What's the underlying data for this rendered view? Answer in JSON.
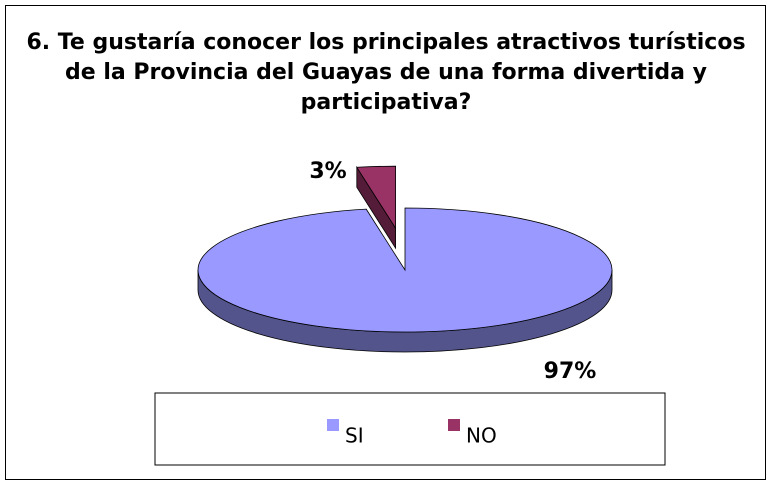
{
  "chart_data": {
    "type": "pie",
    "title": "6. Te gustaría conocer los principales atractivos turísticos de la Provincia del Guayas de una forma divertida y participativa?",
    "categories": [
      "SI",
      "NO"
    ],
    "values": [
      97,
      3
    ],
    "value_labels": [
      "97%",
      "3%"
    ],
    "colors": [
      "#9999ff",
      "#993366"
    ],
    "legend": "bottom"
  }
}
